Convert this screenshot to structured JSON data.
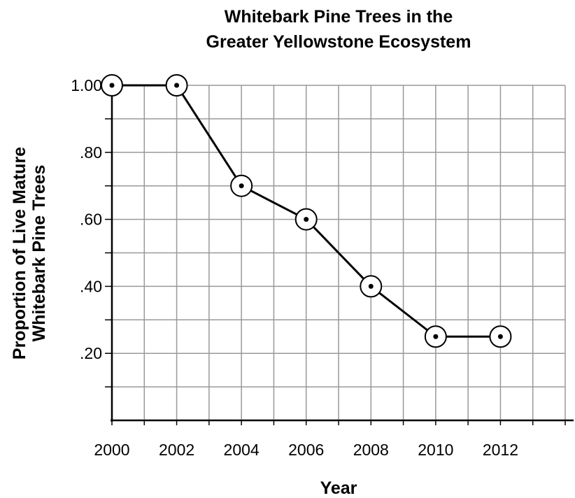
{
  "chart_data": {
    "type": "line",
    "title": [
      "Whitebark Pine Trees in the",
      "Greater Yellowstone Ecosystem"
    ],
    "xlabel": "Year",
    "ylabel": [
      "Proportion of Live Mature",
      "Whitebark Pine Trees"
    ],
    "x": [
      2000,
      2002,
      2004,
      2006,
      2008,
      2010,
      2012
    ],
    "values": [
      1.0,
      1.0,
      0.7,
      0.6,
      0.4,
      0.25,
      0.25
    ],
    "xlim": [
      2000,
      2014
    ],
    "ylim": [
      0,
      1.0
    ],
    "x_ticks": [
      "2000",
      "2002",
      "2004",
      "2006",
      "2008",
      "2010",
      "2012"
    ],
    "y_ticks": [
      {
        "value": 0.2,
        "label": ".20"
      },
      {
        "value": 0.4,
        "label": ".40"
      },
      {
        "value": 0.6,
        "label": ".60"
      },
      {
        "value": 0.8,
        "label": ".80"
      },
      {
        "value": 1.0,
        "label": "1.00"
      }
    ],
    "grid": true,
    "grid_step_x": 1,
    "grid_step_y": 0.1,
    "colors": {
      "line": "#000000",
      "grid": "#999999"
    }
  }
}
